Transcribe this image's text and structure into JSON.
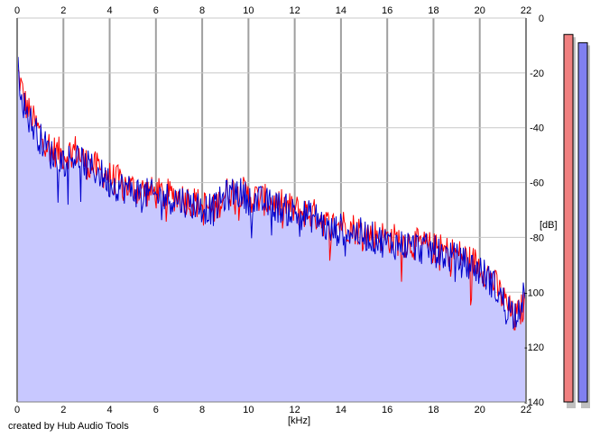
{
  "chart_data": {
    "type": "line",
    "xlabel": "[kHz]",
    "ylabel": "[dB]",
    "xlim": [
      0,
      22
    ],
    "ylim": [
      -140,
      0
    ],
    "x_ticks": [
      0,
      2,
      4,
      6,
      8,
      10,
      12,
      14,
      16,
      18,
      20,
      22
    ],
    "y_ticks": [
      0,
      -20,
      -40,
      -60,
      -80,
      -100,
      -120,
      -140
    ],
    "y_tick_labels": [
      "0",
      "-20",
      "-40",
      "-60",
      "-80",
      "-100",
      "-120",
      "-140"
    ],
    "grid": true,
    "series": [
      {
        "color": "#ff0000",
        "x": [
          0,
          0.1,
          0.3,
          0.6,
          1,
          1.5,
          2,
          2.5,
          3,
          3.5,
          4,
          5,
          6,
          7,
          8,
          8.5,
          9,
          9.5,
          10,
          11,
          12,
          13,
          13.5,
          14,
          15,
          16,
          17,
          18,
          19,
          20,
          20.5,
          21,
          21.5,
          22
        ],
        "y": [
          -20,
          -22,
          -30,
          -36,
          -42,
          -48,
          -50,
          -48,
          -53,
          -55,
          -58,
          -62,
          -64,
          -65,
          -68,
          -70,
          -64,
          -62,
          -65,
          -67,
          -70,
          -72,
          -76,
          -75,
          -78,
          -80,
          -82,
          -84,
          -86,
          -90,
          -95,
          -102,
          -110,
          -104
        ]
      },
      {
        "color": "#0000cc",
        "x": [
          0,
          0.1,
          0.3,
          0.6,
          1,
          1.5,
          2,
          2.5,
          3,
          3.5,
          4,
          5,
          6,
          7,
          8,
          8.5,
          9,
          9.5,
          10,
          11,
          12,
          13,
          13.5,
          14,
          15,
          16,
          17,
          18,
          19,
          20,
          20.5,
          21,
          21.5,
          22
        ],
        "y": [
          -18,
          -22,
          -32,
          -38,
          -44,
          -50,
          -52,
          -50,
          -54,
          -56,
          -60,
          -63,
          -65,
          -66,
          -69,
          -70,
          -65,
          -63,
          -66,
          -68,
          -71,
          -73,
          -78,
          -77,
          -79,
          -82,
          -83,
          -85,
          -88,
          -92,
          -96,
          -103,
          -108,
          -100
        ]
      }
    ],
    "fill_color": "#c8c8ff",
    "meters": [
      {
        "color": "#f08080",
        "value": -6
      },
      {
        "color": "#8080f0",
        "value": -9
      }
    ]
  },
  "credit": "created by Hub Audio Tools"
}
